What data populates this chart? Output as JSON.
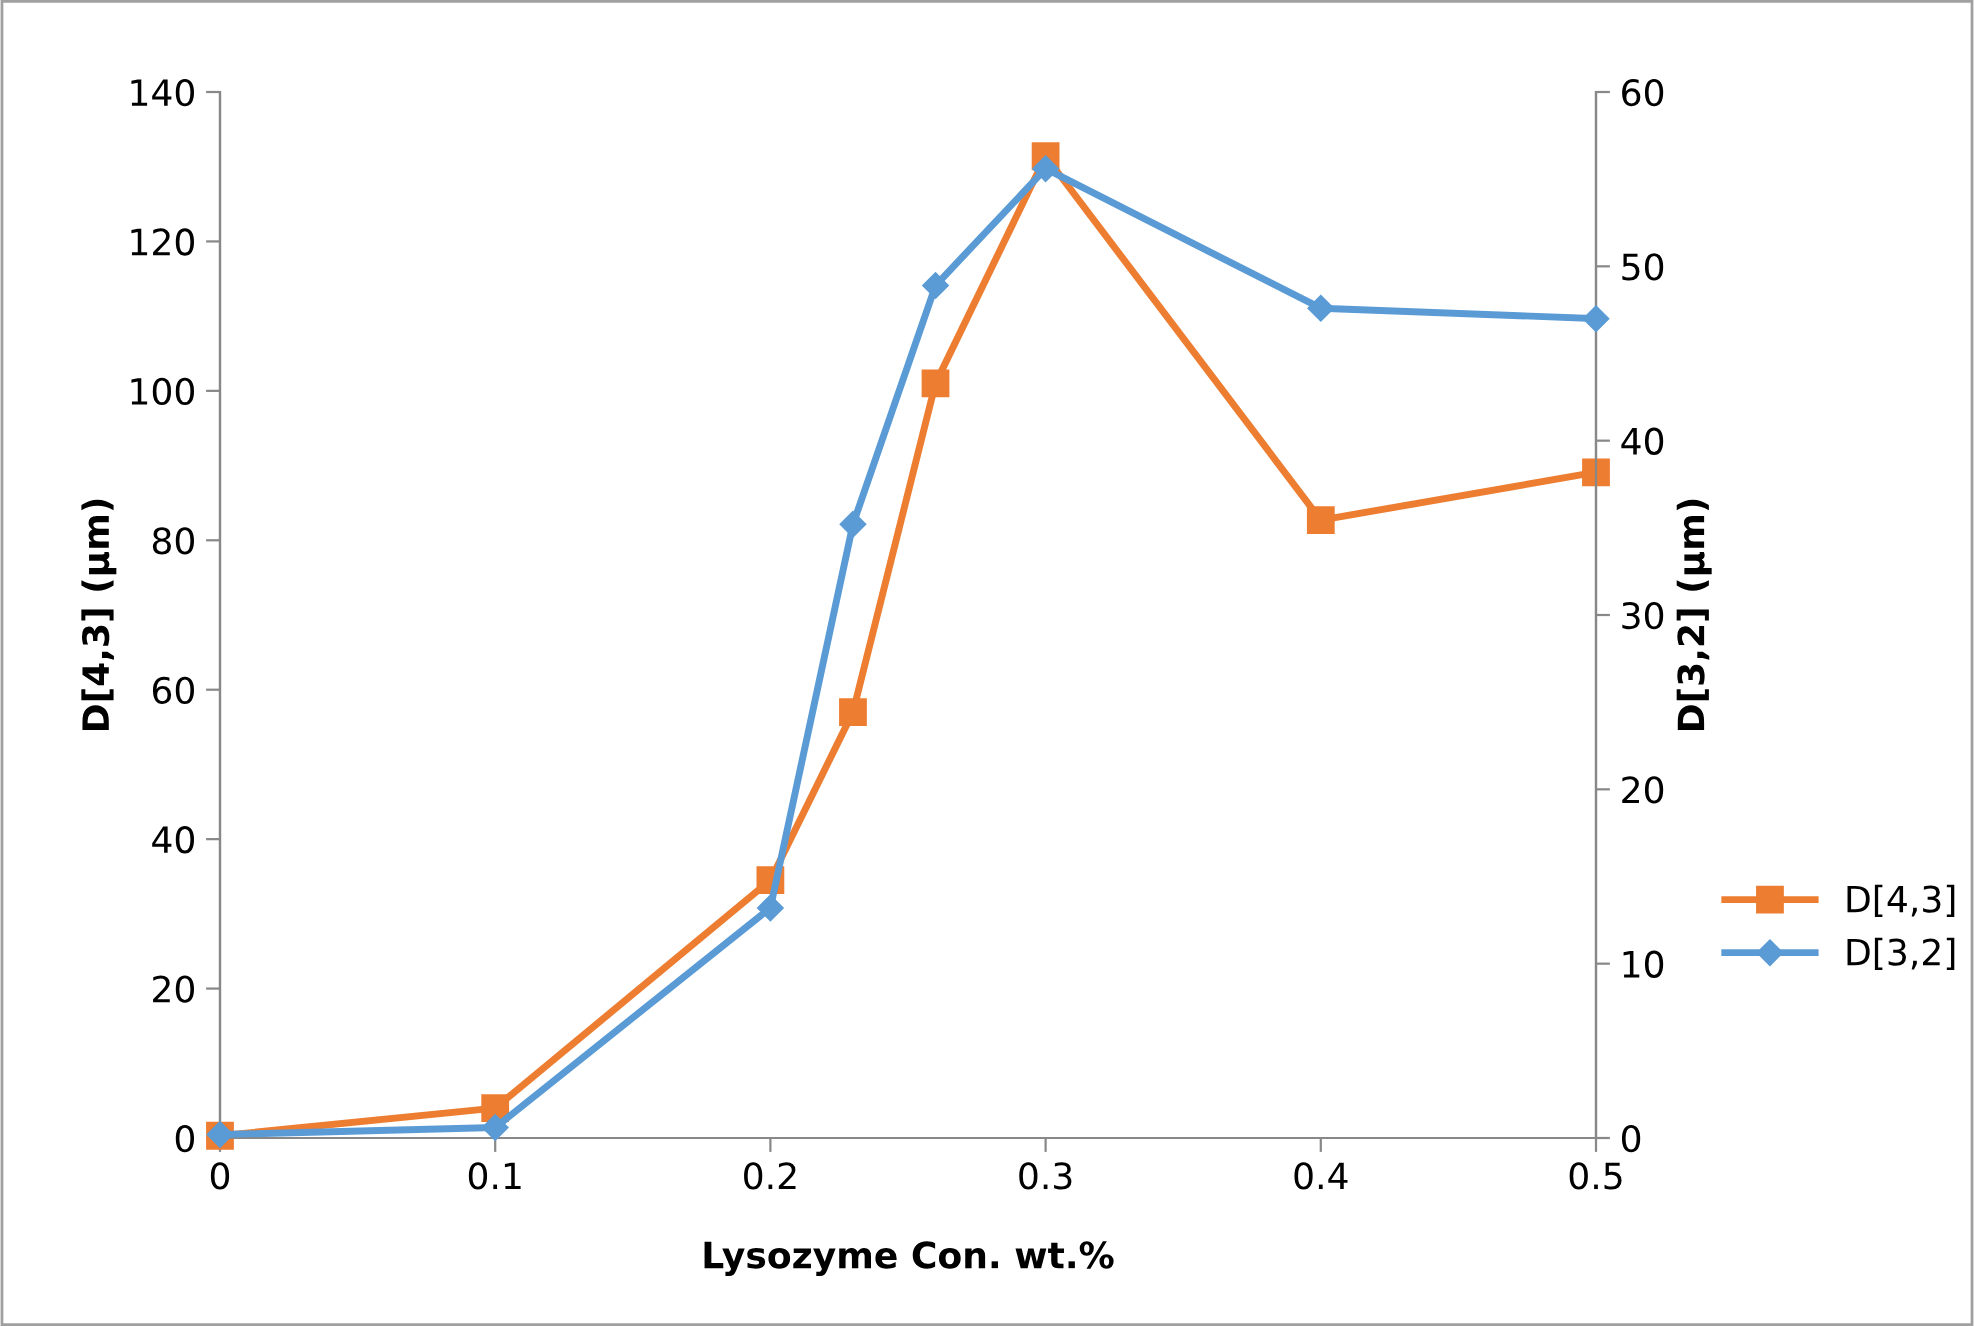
{
  "chart_data": {
    "type": "line",
    "xlabel": "Lysozyme Con. wt.%",
    "ylabel": "D[4,3] (μm)",
    "y2label": "D[3,2] (μm)",
    "x": [
      0,
      0.1,
      0.2,
      0.23,
      0.26,
      0.3,
      0.4,
      0.5
    ],
    "series": [
      {
        "name": "D[4,3]",
        "color": "#ed7d31",
        "marker": "square",
        "values": [
          0.3,
          4.0,
          34.5,
          57,
          101,
          131.4,
          82.7,
          89.1
        ]
      },
      {
        "name": "D[3,2]",
        "color": "#5b9bd5",
        "marker": "diamond",
        "axis": "y2",
        "values": [
          0.2,
          0.6,
          13.2,
          35.2,
          48.9,
          55.6,
          47.6,
          47.0
        ]
      }
    ],
    "xlim": [
      0,
      0.5
    ],
    "xticks": [
      0,
      0.1,
      0.2,
      0.3,
      0.4,
      0.5
    ],
    "ylim": [
      0,
      140
    ],
    "yticks": [
      0,
      20,
      40,
      60,
      80,
      100,
      120,
      140
    ],
    "y2lim": [
      0,
      60
    ],
    "y2ticks": [
      0,
      10,
      20,
      30,
      40,
      50,
      60
    ],
    "grid": false,
    "legend": "right",
    "line_style": "solid"
  }
}
